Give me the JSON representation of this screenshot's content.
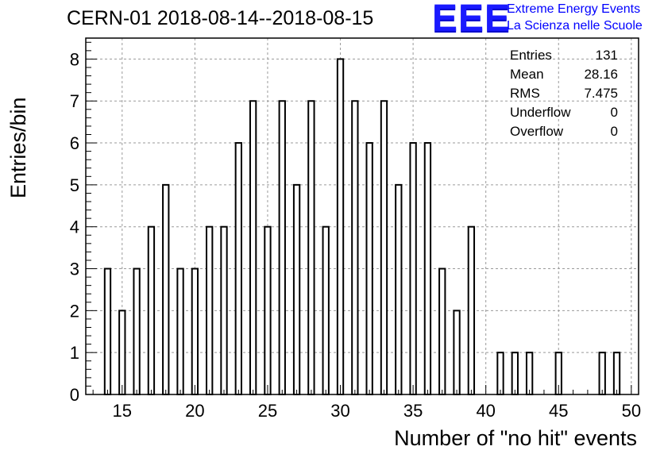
{
  "chart_data": {
    "type": "bar",
    "title": "CERN-01 2018-08-14--2018-08-15",
    "xlabel": "Number of \"no hit\" events",
    "ylabel": "Entries/bin",
    "xlim": [
      12.5,
      50.5
    ],
    "ylim": [
      0,
      8.5
    ],
    "grid": true,
    "x_ticks": [
      "15",
      "20",
      "25",
      "30",
      "35",
      "40",
      "45",
      "50"
    ],
    "y_ticks": [
      "0",
      "1",
      "2",
      "3",
      "4",
      "5",
      "6",
      "7",
      "8"
    ],
    "bins": [
      {
        "x": 14,
        "value": 3
      },
      {
        "x": 15,
        "value": 2
      },
      {
        "x": 16,
        "value": 3
      },
      {
        "x": 17,
        "value": 4
      },
      {
        "x": 18,
        "value": 5
      },
      {
        "x": 19,
        "value": 3
      },
      {
        "x": 20,
        "value": 3
      },
      {
        "x": 21,
        "value": 4
      },
      {
        "x": 22,
        "value": 4
      },
      {
        "x": 23,
        "value": 6
      },
      {
        "x": 24,
        "value": 7
      },
      {
        "x": 25,
        "value": 4
      },
      {
        "x": 26,
        "value": 7
      },
      {
        "x": 27,
        "value": 5
      },
      {
        "x": 28,
        "value": 7
      },
      {
        "x": 29,
        "value": 4
      },
      {
        "x": 30,
        "value": 8
      },
      {
        "x": 31,
        "value": 7
      },
      {
        "x": 32,
        "value": 6
      },
      {
        "x": 33,
        "value": 7
      },
      {
        "x": 34,
        "value": 5
      },
      {
        "x": 35,
        "value": 6
      },
      {
        "x": 36,
        "value": 6
      },
      {
        "x": 37,
        "value": 3
      },
      {
        "x": 38,
        "value": 2
      },
      {
        "x": 39,
        "value": 4
      },
      {
        "x": 41,
        "value": 1
      },
      {
        "x": 42,
        "value": 1
      },
      {
        "x": 43,
        "value": 1
      },
      {
        "x": 45,
        "value": 1
      },
      {
        "x": 48,
        "value": 1
      },
      {
        "x": 49,
        "value": 1
      }
    ],
    "stats": [
      {
        "name": "Entries",
        "value": "131"
      },
      {
        "name": "Mean",
        "value": "28.16"
      },
      {
        "name": "RMS",
        "value": "7.475"
      },
      {
        "name": "Underflow",
        "value": "0"
      },
      {
        "name": "Overflow",
        "value": "0"
      }
    ]
  },
  "logo": {
    "mark": "EEE",
    "line1": "Extreme Energy Events",
    "line2": "La Scienza nelle Scuole",
    "color": "#0000ff"
  }
}
